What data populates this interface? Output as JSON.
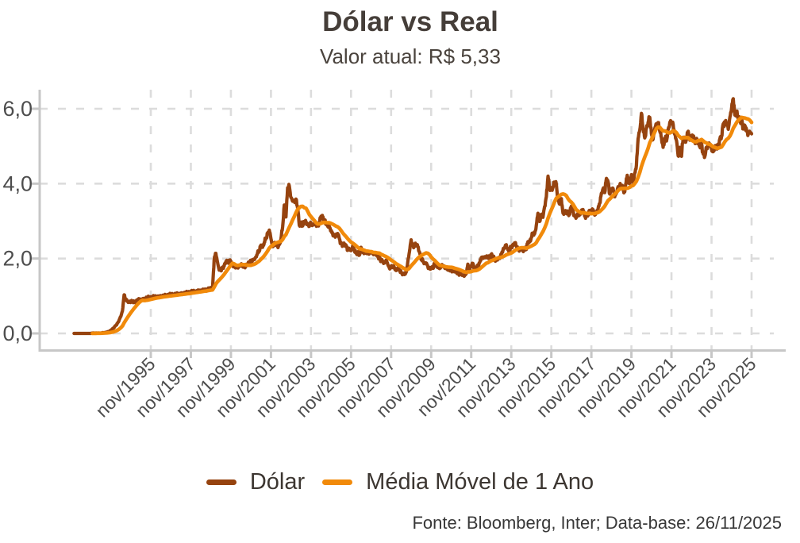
{
  "header": {
    "title": "Dólar vs Real",
    "subtitle": "Valor atual: R$ 5,33"
  },
  "footer": {
    "source_note": "Fonte: Bloomberg, Inter; Data-base: 26/11/2025"
  },
  "colors": {
    "dolar_line": "#96430F",
    "media_movel_line": "#F18A0A",
    "grid": "#DCDCDC",
    "axis": "#C7C7C7",
    "title_text": "#453E39",
    "tick_text": "#4D4D4D",
    "footer_text": "#383838"
  },
  "chart_data": {
    "type": "line",
    "title": "Dólar vs Real",
    "subtitle": "Valor atual: R$ 5,33",
    "current_value": "R$ 5,33",
    "grid": "dashed",
    "legend_position": "bottom",
    "ylim": [
      0,
      6.6
    ],
    "y_tick_values": [
      0,
      2,
      4,
      6
    ],
    "y_tick_labels": [
      "0,0",
      "2,0",
      "4,0",
      "6,0"
    ],
    "x_tick_labels": [
      "nov/1995",
      "nov/1997",
      "nov/1999",
      "nov/2001",
      "nov/2003",
      "nov/2005",
      "nov/2007",
      "nov/2009",
      "nov/2011",
      "nov/2013",
      "nov/2015",
      "nov/2017",
      "nov/2019",
      "nov/2021",
      "nov/2023",
      "nov/2025"
    ],
    "x_monthly_start": "1992-01",
    "x_monthly_end": "2025-11",
    "series": [
      {
        "name": "Dólar",
        "color": "#96430F",
        "unit": "BRL per USD",
        "values": [
          0,
          0,
          0,
          0,
          0,
          0,
          0,
          0,
          0,
          0,
          0,
          0.01,
          0.01,
          0.01,
          0.01,
          0.01,
          0.01,
          0.02,
          0.02,
          0.03,
          0.04,
          0.05,
          0.08,
          0.12,
          0.16,
          0.21,
          0.27,
          0.35,
          0.45,
          0.6,
          1.03,
          0.9,
          0.86,
          0.84,
          0.84,
          0.85,
          0.85,
          0.84,
          0.9,
          0.92,
          0.9,
          0.91,
          0.93,
          0.94,
          0.95,
          0.96,
          0.96,
          0.97,
          0.98,
          0.98,
          0.99,
          0.99,
          1.0,
          1.0,
          1.01,
          1.02,
          1.02,
          1.03,
          1.03,
          1.04,
          1.04,
          1.05,
          1.06,
          1.06,
          1.07,
          1.07,
          1.08,
          1.09,
          1.09,
          1.1,
          1.11,
          1.12,
          1.12,
          1.13,
          1.14,
          1.14,
          1.15,
          1.16,
          1.16,
          1.17,
          1.18,
          1.19,
          1.2,
          1.21,
          2.0,
          2.14,
          1.9,
          1.69,
          1.68,
          1.77,
          1.8,
          1.92,
          1.91,
          1.95,
          1.93,
          1.8,
          1.8,
          1.77,
          1.75,
          1.81,
          1.83,
          1.8,
          1.78,
          1.82,
          1.85,
          1.88,
          1.95,
          1.96,
          1.97,
          2.04,
          2.16,
          2.19,
          2.36,
          2.3,
          2.43,
          2.53,
          2.67,
          2.76,
          2.53,
          2.32,
          2.42,
          2.35,
          2.32,
          2.37,
          2.52,
          2.84,
          3.43,
          3.11,
          3.89,
          3.94,
          3.63,
          3.53,
          3.53,
          3.59,
          3.35,
          2.89,
          2.97,
          2.87,
          2.97,
          2.97,
          2.92,
          2.86,
          2.95,
          2.89,
          2.94,
          2.91,
          2.91,
          2.95,
          3.13,
          3.11,
          3.03,
          2.93,
          2.86,
          2.86,
          2.73,
          2.65,
          2.62,
          2.6,
          2.67,
          2.53,
          2.4,
          2.35,
          2.39,
          2.36,
          2.22,
          2.25,
          2.21,
          2.34,
          2.22,
          2.14,
          2.17,
          2.09,
          2.3,
          2.16,
          2.18,
          2.14,
          2.17,
          2.14,
          2.17,
          2.14,
          2.12,
          2.12,
          2.05,
          2.03,
          1.93,
          1.93,
          1.88,
          1.96,
          1.84,
          1.74,
          1.78,
          1.77,
          1.76,
          1.68,
          1.75,
          1.69,
          1.63,
          1.59,
          1.57,
          1.63,
          1.91,
          2.18,
          2.5,
          2.34,
          2.32,
          2.38,
          2.32,
          2.18,
          1.97,
          1.95,
          1.87,
          1.88,
          1.78,
          1.74,
          1.75,
          1.74,
          1.88,
          1.81,
          1.78,
          1.73,
          1.82,
          1.8,
          1.76,
          1.76,
          1.69,
          1.7,
          1.72,
          1.66,
          1.67,
          1.66,
          1.63,
          1.57,
          1.58,
          1.56,
          1.54,
          1.59,
          1.85,
          1.69,
          1.81,
          1.87,
          1.74,
          1.71,
          1.82,
          1.89,
          2.02,
          2.01,
          2.05,
          2.03,
          2.03,
          2.03,
          2.11,
          2.04,
          1.99,
          1.97,
          2.01,
          2.0,
          2.13,
          2.22,
          2.29,
          2.37,
          2.23,
          2.2,
          2.33,
          2.34,
          2.42,
          2.33,
          2.26,
          2.23,
          2.24,
          2.2,
          2.27,
          2.24,
          2.45,
          2.44,
          2.56,
          2.66,
          2.66,
          2.88,
          3.21,
          2.99,
          3.18,
          3.1,
          3.39,
          3.65,
          4.2,
          3.86,
          3.85,
          3.9,
          4.04,
          3.98,
          3.56,
          3.45,
          3.6,
          3.21,
          3.24,
          3.24,
          3.25,
          3.18,
          3.4,
          3.26,
          3.13,
          3.1,
          3.17,
          3.17,
          3.24,
          3.31,
          3.13,
          3.15,
          3.17,
          3.28,
          3.26,
          3.31,
          3.16,
          3.25,
          3.32,
          3.47,
          3.74,
          3.86,
          3.76,
          4.14,
          4.05,
          3.72,
          3.86,
          3.87,
          3.65,
          3.74,
          3.92,
          3.95,
          3.94,
          3.85,
          3.78,
          4.14,
          4.16,
          4.0,
          4.24,
          4.03,
          4.28,
          4.49,
          5.2,
          5.43,
          5.88,
          5.46,
          5.22,
          5.47,
          5.64,
          5.77,
          5.33,
          5.19,
          5.47,
          5.6,
          5.63,
          5.4,
          5.23,
          4.97,
          5.21,
          5.14,
          5.44,
          5.64,
          5.62,
          5.58,
          5.31,
          5.15,
          4.74,
          4.97,
          4.73,
          5.24,
          5.17,
          5.18,
          5.4,
          5.16,
          5.29,
          5.28,
          5.1,
          5.21,
          5.06,
          5.0,
          5.07,
          4.79,
          4.73,
          4.96,
          5.03,
          5.06,
          4.92,
          4.85,
          4.96,
          4.97,
          5.02,
          5.19,
          5.25,
          5.59,
          5.65,
          5.63,
          5.45,
          5.78,
          6.01,
          6.27,
          5.83,
          5.91,
          5.74,
          5.68,
          5.72,
          5.46,
          5.55,
          5.43,
          5.32,
          5.38,
          5.33
        ]
      },
      {
        "name": "Média Móvel de 1 Ano",
        "color": "#F18A0A",
        "derived_from": "Dólar",
        "derivation": "12-month moving average"
      }
    ]
  }
}
